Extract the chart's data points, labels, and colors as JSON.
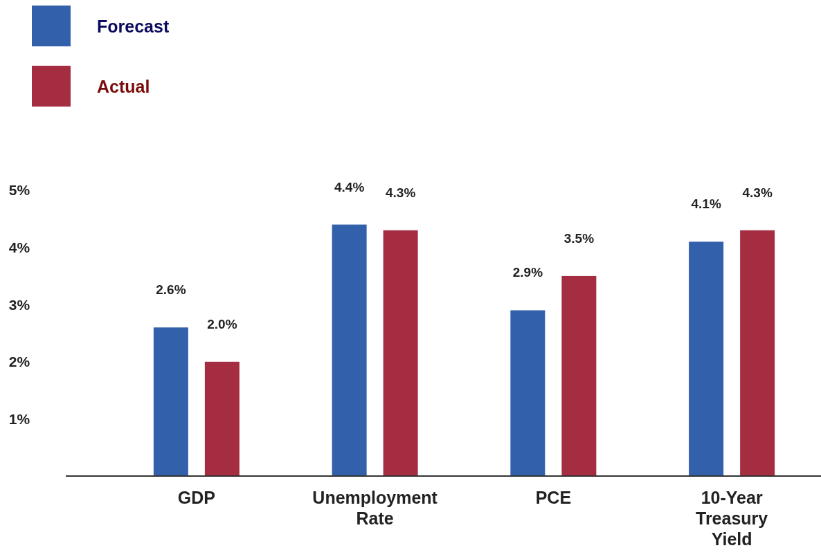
{
  "chart_data": {
    "type": "bar",
    "categories": [
      "GDP",
      "Unemployment Rate",
      "PCE",
      "10-Year Treasury Yield"
    ],
    "series": [
      {
        "name": "Forecast",
        "color": "#3360aa",
        "values": [
          2.6,
          4.4,
          2.9,
          4.1
        ]
      },
      {
        "name": "Actual",
        "color": "#a52d42",
        "values": [
          2.0,
          4.3,
          3.5,
          4.3
        ]
      }
    ],
    "ylim": [
      0,
      5
    ],
    "yticks": [
      {
        "value": 1,
        "label": "1%"
      },
      {
        "value": 2,
        "label": "2%"
      },
      {
        "value": 3,
        "label": "3%"
      },
      {
        "value": 4,
        "label": "4%"
      },
      {
        "value": 5,
        "label": "5%"
      }
    ],
    "value_labels": [
      [
        "2.6%",
        "4.4%",
        "2.9%",
        "4.1%"
      ],
      [
        "2.0%",
        "4.3%",
        "3.5%",
        "4.3%"
      ]
    ],
    "grid": false,
    "legend": "top left"
  }
}
